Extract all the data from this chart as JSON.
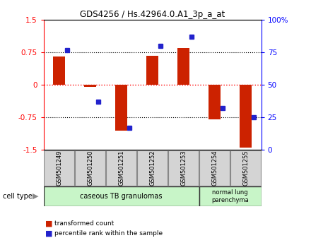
{
  "title": "GDS4256 / Hs.42964.0.A1_3p_a_at",
  "samples": [
    "GSM501249",
    "GSM501250",
    "GSM501251",
    "GSM501252",
    "GSM501253",
    "GSM501254",
    "GSM501255"
  ],
  "red_values": [
    0.65,
    -0.05,
    -1.05,
    0.68,
    0.85,
    -0.8,
    -1.45
  ],
  "blue_values_pct": [
    77,
    37,
    17,
    80,
    87,
    32,
    25
  ],
  "ylim": [
    -1.5,
    1.5
  ],
  "yticks_left": [
    -1.5,
    -0.75,
    0,
    0.75,
    1.5
  ],
  "yticks_right": [
    0,
    25,
    50,
    75,
    100
  ],
  "group1_label": "caseous TB granulomas",
  "group2_label": "normal lung\nparenchyma",
  "group1_color": "#c8f5c8",
  "group2_color": "#c8f5c8",
  "cell_type_label": "cell type",
  "legend_red": "transformed count",
  "legend_blue": "percentile rank within the sample",
  "bar_color": "#cc2200",
  "dot_color": "#2222cc",
  "bar_width": 0.4,
  "bg_color": "#ffffff",
  "label_box_color": "#d4d4d4"
}
